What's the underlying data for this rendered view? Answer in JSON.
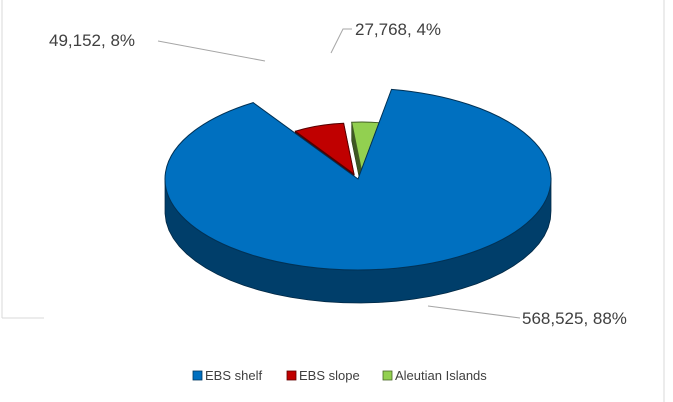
{
  "chart_data": {
    "type": "pie",
    "style": "3d-exploded",
    "title": "",
    "categories": [
      "EBS shelf",
      "EBS slope",
      "Aleutian Islands"
    ],
    "values": [
      568525,
      49152,
      27768
    ],
    "percent_labels": [
      "88%",
      "8%",
      "4%"
    ],
    "data_labels": [
      "568,525, 88%",
      "49,152, 8%",
      "27,768, 4%"
    ],
    "colors": [
      "#0070C0",
      "#C00000",
      "#92D050"
    ],
    "legend": {
      "position": "bottom",
      "items": [
        "EBS shelf",
        "EBS slope",
        "Aleutian Islands"
      ]
    }
  }
}
